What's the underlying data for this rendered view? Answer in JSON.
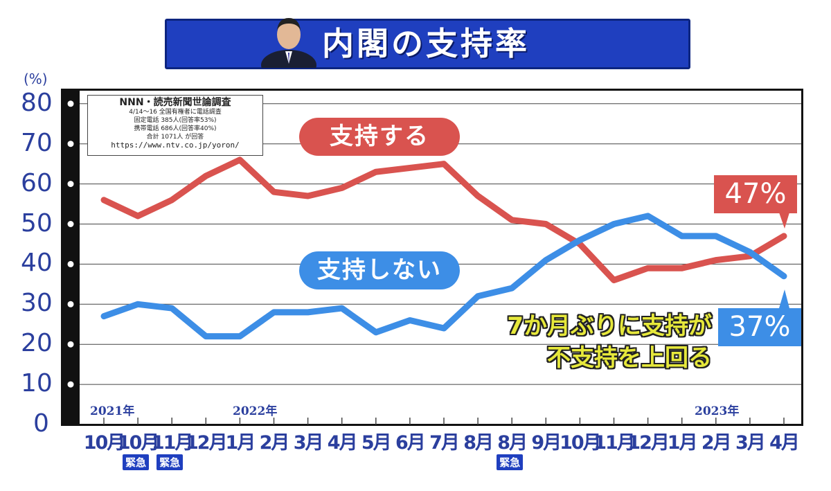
{
  "title": "内閣の支持率",
  "survey_box": {
    "heading": "NNN・読売新聞世論調査",
    "lines": [
      "4/14〜16 全国有権者に電話調査",
      "固定電話 385人(回答率53%)",
      "携帯電話 686人(回答率40%)",
      "合計 1071人 が回答"
    ],
    "url": "https://www.ntv.co.jp/yoron/"
  },
  "year_labels": [
    "2021年",
    "2022年",
    "2023年"
  ],
  "note": [
    "7か月ぶりに支持が",
    "不支持を上回る"
  ],
  "colors": {
    "support": "#d9534f",
    "nonsupport": "#3d8ee6",
    "title_bg": "#1f3fbf",
    "axis_text": "#2b3f9e"
  },
  "chart_data": {
    "type": "line",
    "title": "内閣の支持率",
    "ylabel": "(%)",
    "ylim": [
      0,
      80
    ],
    "yticks": [
      "0",
      "10",
      "20",
      "30",
      "40",
      "50",
      "60",
      "70",
      "80"
    ],
    "categories": [
      "10月",
      "10月",
      "11月",
      "12月",
      "1月",
      "2月",
      "3月",
      "4月",
      "5月",
      "6月",
      "7月",
      "8月",
      "8月",
      "9月",
      "10月",
      "11月",
      "12月",
      "1月",
      "2月",
      "3月",
      "4月"
    ],
    "badges": {
      "1": "緊急",
      "2": "緊急",
      "12": "緊急"
    },
    "series": [
      {
        "name": "支持する",
        "values": [
          56,
          52,
          56,
          62,
          66,
          58,
          57,
          59,
          63,
          64,
          65,
          57,
          51,
          50,
          45,
          36,
          39,
          39,
          41,
          42,
          47
        ],
        "end_label": "47%"
      },
      {
        "name": "支持しない",
        "values": [
          27,
          30,
          29,
          22,
          22,
          28,
          28,
          29,
          23,
          26,
          24,
          32,
          34,
          41,
          46,
          50,
          52,
          47,
          47,
          43,
          37
        ],
        "end_label": "37%"
      }
    ],
    "grid": true
  }
}
